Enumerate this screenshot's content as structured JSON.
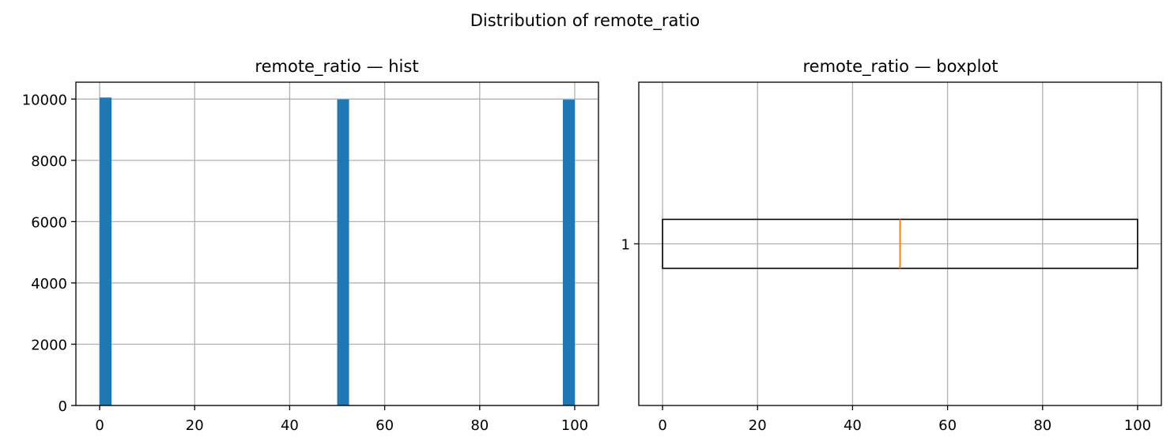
{
  "figure": {
    "suptitle": "Distribution of remote_ratio"
  },
  "colors": {
    "bar": "#1f77b4",
    "median": "#ff7f0e",
    "grid": "#b0b0b0",
    "box": "#000000"
  },
  "chart_data": [
    {
      "type": "histogram",
      "title": "remote_ratio — hist",
      "xlabel": "",
      "ylabel": "",
      "xlim": [
        -5,
        105
      ],
      "ylim": [
        0,
        10550
      ],
      "grid": true,
      "x_ticks": [
        0,
        20,
        40,
        60,
        80,
        100
      ],
      "y_ticks": [
        0,
        2000,
        4000,
        6000,
        8000,
        10000
      ],
      "bins": [
        {
          "start": 0.0,
          "end": 2.5,
          "count": 10050
        },
        {
          "start": 50.0,
          "end": 52.5,
          "count": 9990
        },
        {
          "start": 97.5,
          "end": 100.0,
          "count": 9980
        }
      ]
    },
    {
      "type": "boxplot",
      "title": "remote_ratio — boxplot",
      "orientation": "horizontal",
      "xlabel": "",
      "ylabel": "",
      "xlim": [
        -5,
        105
      ],
      "grid": true,
      "x_ticks": [
        0,
        20,
        40,
        60,
        80,
        100
      ],
      "y_ticks": [
        "1"
      ],
      "box": {
        "min": 0,
        "q1": 0,
        "median": 50,
        "q3": 100,
        "max": 100
      }
    }
  ]
}
